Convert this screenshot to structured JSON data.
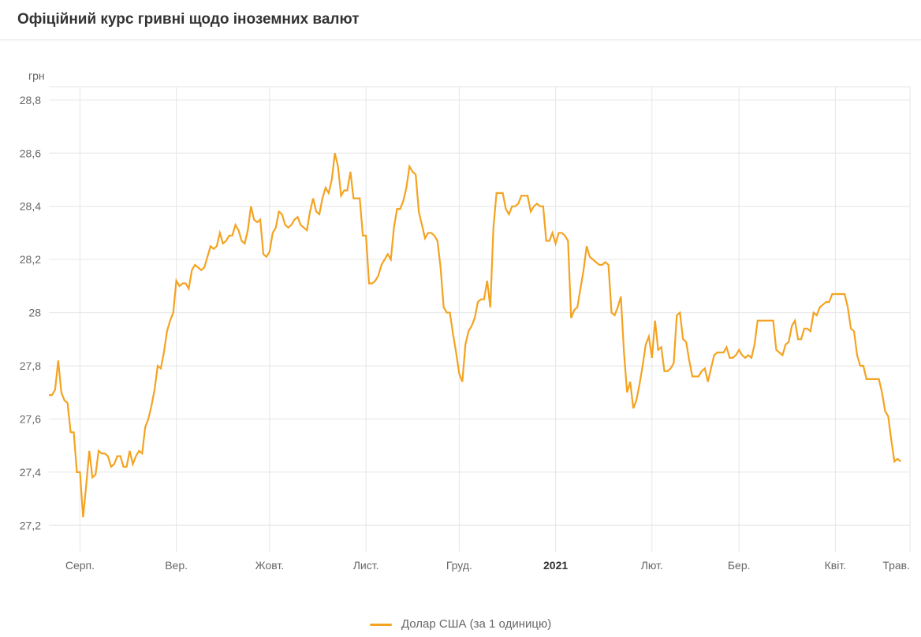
{
  "title": "Офіційний курс гривні щодо іноземних валют",
  "y_axis_title": "грн",
  "legend_label": "Долар США (за 1 одиницю)",
  "chart": {
    "type": "line",
    "line_color": "#f4a320",
    "line_width": 2.2,
    "background_color": "#ffffff",
    "grid_color": "#e6e6e6",
    "axis_text_color": "#666666",
    "axis_text_bold_color": "#333333",
    "title_fontsize": 19,
    "axis_fontsize": 14,
    "legend_fontsize": 15,
    "ylim": [
      27.1,
      28.85
    ],
    "yticks": [
      27.2,
      27.4,
      27.6,
      27.8,
      28.0,
      28.2,
      28.4,
      28.6,
      28.8
    ],
    "ytick_labels": [
      "27,2",
      "27,4",
      "27,6",
      "27,8",
      "28",
      "28,2",
      "28,4",
      "28,6",
      "28,8"
    ],
    "xlim": [
      0,
      277
    ],
    "xticks": [
      {
        "pos": 10,
        "label": "Серп.",
        "bold": false
      },
      {
        "pos": 41,
        "label": "Вер.",
        "bold": false
      },
      {
        "pos": 71,
        "label": "Жовт.",
        "bold": false
      },
      {
        "pos": 102,
        "label": "Лист.",
        "bold": false
      },
      {
        "pos": 132,
        "label": "Груд.",
        "bold": false
      },
      {
        "pos": 163,
        "label": "2021",
        "bold": true
      },
      {
        "pos": 194,
        "label": "Лют.",
        "bold": false
      },
      {
        "pos": 222,
        "label": "Бер.",
        "bold": false
      },
      {
        "pos": 253,
        "label": "Квіт.",
        "bold": false
      },
      {
        "pos": 277,
        "label": "Трав.",
        "bold": false
      }
    ],
    "series": [
      27.69,
      27.69,
      27.71,
      27.82,
      27.7,
      27.67,
      27.66,
      27.55,
      27.55,
      27.4,
      27.4,
      27.23,
      27.35,
      27.48,
      27.38,
      27.39,
      27.48,
      27.47,
      27.47,
      27.46,
      27.42,
      27.43,
      27.46,
      27.46,
      27.42,
      27.42,
      27.48,
      27.43,
      27.46,
      27.48,
      27.47,
      27.57,
      27.6,
      27.65,
      27.71,
      27.8,
      27.79,
      27.85,
      27.93,
      27.97,
      28.0,
      28.12,
      28.1,
      28.11,
      28.11,
      28.09,
      28.16,
      28.18,
      28.17,
      28.16,
      28.17,
      28.21,
      28.25,
      28.24,
      28.25,
      28.3,
      28.26,
      28.27,
      28.29,
      28.29,
      28.33,
      28.31,
      28.27,
      28.26,
      28.31,
      28.4,
      28.35,
      28.34,
      28.35,
      28.22,
      28.21,
      28.23,
      28.3,
      28.32,
      28.38,
      28.37,
      28.33,
      28.32,
      28.33,
      28.35,
      28.36,
      28.33,
      28.32,
      28.31,
      28.38,
      28.43,
      28.38,
      28.37,
      28.43,
      28.47,
      28.45,
      28.5,
      28.6,
      28.55,
      28.44,
      28.46,
      28.46,
      28.53,
      28.43,
      28.43,
      28.43,
      28.29,
      28.29,
      28.11,
      28.11,
      28.12,
      28.14,
      28.18,
      28.2,
      28.22,
      28.2,
      28.32,
      28.39,
      28.39,
      28.42,
      28.47,
      28.55,
      28.53,
      28.52,
      28.38,
      28.33,
      28.28,
      28.3,
      28.3,
      28.29,
      28.27,
      28.17,
      28.02,
      28.0,
      28.0,
      27.92,
      27.85,
      27.77,
      27.74,
      27.88,
      27.93,
      27.95,
      27.98,
      28.04,
      28.05,
      28.05,
      28.12,
      28.02,
      28.32,
      28.45,
      28.45,
      28.45,
      28.39,
      28.37,
      28.4,
      28.4,
      28.41,
      28.44,
      28.44,
      28.44,
      28.38,
      28.4,
      28.41,
      28.4,
      28.4,
      28.27,
      28.27,
      28.3,
      28.26,
      28.3,
      28.3,
      28.29,
      28.27,
      27.98,
      28.01,
      28.02,
      28.09,
      28.16,
      28.25,
      28.21,
      28.2,
      28.19,
      28.18,
      28.18,
      28.19,
      28.18,
      28.0,
      27.99,
      28.02,
      28.06,
      27.85,
      27.7,
      27.74,
      27.64,
      27.67,
      27.73,
      27.8,
      27.88,
      27.91,
      27.83,
      27.97,
      27.86,
      27.87,
      27.78,
      27.78,
      27.79,
      27.81,
      27.99,
      28.0,
      27.9,
      27.89,
      27.82,
      27.76,
      27.76,
      27.76,
      27.78,
      27.79,
      27.74,
      27.79,
      27.84,
      27.85,
      27.85,
      27.85,
      27.87,
      27.83,
      27.83,
      27.84,
      27.86,
      27.84,
      27.83,
      27.84,
      27.83,
      27.88,
      27.97,
      27.97,
      27.97,
      27.97,
      27.97,
      27.97,
      27.86,
      27.85,
      27.84,
      27.88,
      27.89,
      27.95,
      27.97,
      27.9,
      27.9,
      27.94,
      27.94,
      27.93,
      28.0,
      27.99,
      28.02,
      28.03,
      28.04,
      28.04,
      28.07,
      28.07,
      28.07,
      28.07,
      28.07,
      28.02,
      27.94,
      27.93,
      27.84,
      27.8,
      27.8,
      27.75,
      27.75,
      27.75,
      27.75,
      27.75,
      27.7,
      27.63,
      27.61,
      27.52,
      27.44,
      27.45,
      27.44
    ]
  }
}
